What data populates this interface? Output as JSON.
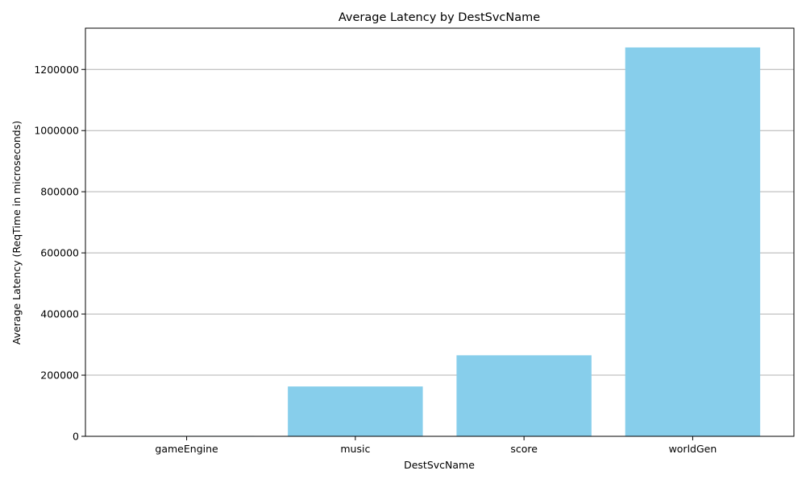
{
  "chart_data": {
    "type": "bar",
    "title": "Average Latency by DestSvcName",
    "xlabel": "DestSvcName",
    "ylabel": "Average Latency (ReqTime in microseconds)",
    "categories": [
      "gameEngine",
      "music",
      "score",
      "worldGen"
    ],
    "values": [
      1500,
      163000,
      265000,
      1272000
    ],
    "ylim": [
      0,
      1335000
    ],
    "yticks": [
      0,
      200000,
      400000,
      600000,
      800000,
      1000000,
      1200000
    ],
    "ytick_labels": [
      "0",
      "200000",
      "400000",
      "600000",
      "800000",
      "1000000",
      "1200000"
    ],
    "grid": "y",
    "bar_color": "#87ceeb"
  }
}
